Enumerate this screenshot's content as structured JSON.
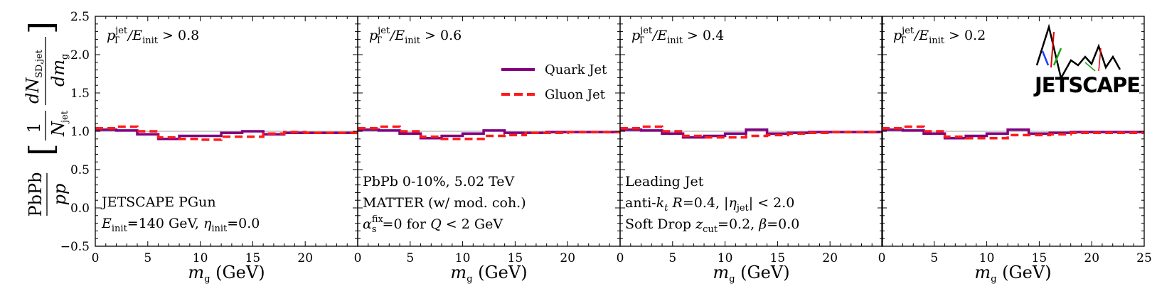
{
  "chart_data": {
    "type": "line",
    "ylabel": {
      "prefix": "PbPb",
      "denominator": "pp",
      "bracket_left": "[",
      "bracket_right": "]",
      "frac1_num": "1",
      "frac1_den_main": "N",
      "frac1_den_sub": "jet",
      "frac2_num_main": "dN",
      "frac2_num_sub": "SD,jet",
      "frac2_den_main": "dm",
      "frac2_den_sub": "g"
    },
    "xlabel_main": "m",
    "xlabel_sub": "g",
    "xlabel_unit": " (GeV)",
    "xlim": [
      0,
      25
    ],
    "ylim": [
      -0.5,
      2.5
    ],
    "yticks": [
      "−0.5",
      "0.0",
      "0.5",
      "1.0",
      "1.5",
      "2.0",
      "2.5"
    ],
    "ytick_values": [
      -0.5,
      0.0,
      0.5,
      1.0,
      1.5,
      2.0,
      2.5
    ],
    "xticks_inner": [
      "0",
      "5",
      "10",
      "15",
      "20"
    ],
    "xticks_last": [
      "0",
      "5",
      "10",
      "15",
      "20",
      "25"
    ],
    "xtick_values": [
      0,
      5,
      10,
      15,
      20,
      25
    ],
    "reference_line": 1.0,
    "bin_edges": [
      0,
      2,
      4,
      6,
      8,
      10,
      12,
      14,
      16,
      18,
      20,
      22,
      25
    ],
    "legend": [
      {
        "name": "Quark Jet",
        "color": "#800080",
        "style": "solid"
      },
      {
        "name": "Gluon Jet",
        "color": "#ff1a1a",
        "style": "dashed"
      }
    ],
    "panels": [
      {
        "cut_prefix": "p",
        "cut_sup": "jet",
        "cut_sub": "T",
        "cut_mid": "/E",
        "cut_mid_sub": "init",
        "cut_tail": " > 0.8",
        "series": [
          {
            "name": "Quark Jet",
            "values": [
              1.02,
              1.01,
              0.96,
              0.9,
              0.94,
              0.94,
              0.98,
              1.0,
              0.96,
              0.98,
              0.98,
              0.98
            ]
          },
          {
            "name": "Gluon Jet",
            "values": [
              1.04,
              1.06,
              1.0,
              0.92,
              0.9,
              0.89,
              0.93,
              0.93,
              0.97,
              0.99,
              0.98,
              0.98
            ]
          }
        ]
      },
      {
        "cut_prefix": "p",
        "cut_sup": "jet",
        "cut_sub": "T",
        "cut_mid": "/E",
        "cut_mid_sub": "init",
        "cut_tail": " > 0.6",
        "series": [
          {
            "name": "Quark Jet",
            "values": [
              1.02,
              1.01,
              0.97,
              0.91,
              0.94,
              0.97,
              1.01,
              0.98,
              0.98,
              0.99,
              0.99,
              0.99
            ]
          },
          {
            "name": "Gluon Jet",
            "values": [
              1.04,
              1.06,
              1.0,
              0.93,
              0.9,
              0.9,
              0.94,
              0.95,
              0.98,
              0.98,
              0.99,
              0.99
            ]
          }
        ]
      },
      {
        "cut_prefix": "p",
        "cut_sup": "jet",
        "cut_sub": "T",
        "cut_mid": "/E",
        "cut_mid_sub": "init",
        "cut_tail": " > 0.4",
        "series": [
          {
            "name": "Quark Jet",
            "values": [
              1.02,
              1.01,
              0.97,
              0.92,
              0.94,
              0.97,
              1.02,
              0.97,
              0.98,
              0.99,
              0.99,
              0.99
            ]
          },
          {
            "name": "Gluon Jet",
            "values": [
              1.04,
              1.06,
              1.0,
              0.94,
              0.92,
              0.92,
              0.94,
              0.95,
              0.97,
              0.98,
              0.99,
              0.99
            ]
          }
        ]
      },
      {
        "cut_prefix": "p",
        "cut_sup": "jet",
        "cut_sub": "T",
        "cut_mid": "/E",
        "cut_mid_sub": "init",
        "cut_tail": " > 0.2",
        "series": [
          {
            "name": "Quark Jet",
            "values": [
              1.02,
              1.01,
              0.97,
              0.91,
              0.94,
              0.97,
              1.02,
              0.97,
              0.98,
              0.99,
              0.99,
              0.99
            ]
          },
          {
            "name": "Gluon Jet",
            "values": [
              1.04,
              1.06,
              1.0,
              0.93,
              0.91,
              0.91,
              0.95,
              0.95,
              0.96,
              0.98,
              0.98,
              0.98
            ]
          }
        ]
      }
    ],
    "annotations": {
      "panel1_line1": "JETSCAPE PGun",
      "panel1_line2_main": "E",
      "panel1_line2_sub": "init",
      "panel1_line2_mid": "=140 GeV, ",
      "panel1_line2_eta": "η",
      "panel1_line2_eta_sub": "init",
      "panel1_line2_tail": "=0.0",
      "panel2_line1": "PbPb 0-10%, 5.02 TeV",
      "panel2_line2": "MATTER (w/ mod. coh.)",
      "panel2_line3_alpha": "α",
      "panel2_line3_sup": "fix",
      "panel2_line3_sub": "s",
      "panel2_line3_mid": "=0 for ",
      "panel2_line3_q": "Q",
      "panel2_line3_tail": " < 2 GeV",
      "panel3_line1": "Leading Jet",
      "panel3_line2_a": "anti-",
      "panel3_line2_k": "k",
      "panel3_line2_ksub": "t",
      "panel3_line2_r": " R",
      "panel3_line2_b": "=0.4, |",
      "panel3_line2_eta": "η",
      "panel3_line2_etasub": "jet",
      "panel3_line2_tail": "| < 2.0",
      "panel3_line3_a": "Soft Drop ",
      "panel3_line3_z": "z",
      "panel3_line3_zsub": "cut",
      "panel3_line3_b": "=0.2, ",
      "panel3_line3_beta": "β",
      "panel3_line3_tail": "=0.0"
    },
    "logo_text": "JETSCAPE"
  }
}
